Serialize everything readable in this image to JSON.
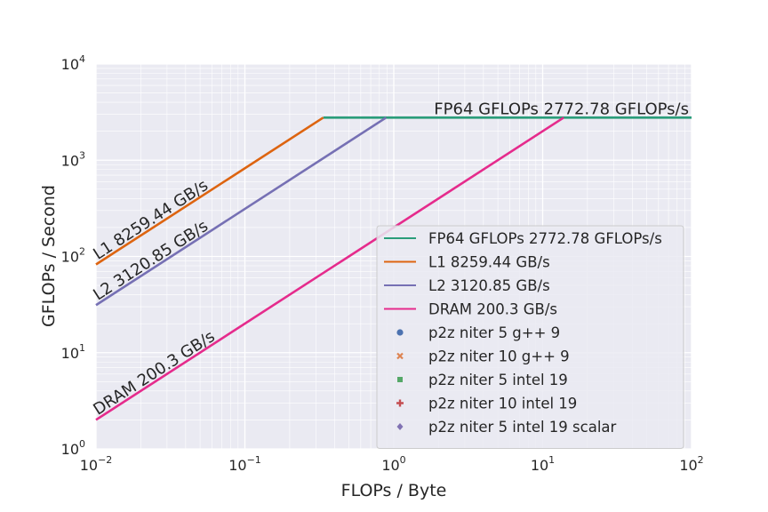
{
  "chart_data": {
    "type": "line",
    "xscale": "log",
    "yscale": "log",
    "xlim": [
      0.01,
      100
    ],
    "ylim": [
      1,
      10000
    ],
    "xlabel": "FLOPs / Byte",
    "ylabel": "GFLOPs / Second",
    "grid": true,
    "legend_position": "lower-right",
    "x_ticks": [
      {
        "value": 0.01,
        "base": "10",
        "exp": "−2"
      },
      {
        "value": 0.1,
        "base": "10",
        "exp": "−1"
      },
      {
        "value": 1,
        "base": "10",
        "exp": "0"
      },
      {
        "value": 10,
        "base": "10",
        "exp": "1"
      },
      {
        "value": 100,
        "base": "10",
        "exp": "2"
      }
    ],
    "y_ticks": [
      {
        "value": 1,
        "base": "10",
        "exp": "0"
      },
      {
        "value": 10,
        "base": "10",
        "exp": "1"
      },
      {
        "value": 100,
        "base": "10",
        "exp": "2"
      },
      {
        "value": 1000,
        "base": "10",
        "exp": "3"
      },
      {
        "value": 10000,
        "base": "10",
        "exp": "4"
      }
    ],
    "series": [
      {
        "name": "FP64 GFLOPs 2772.78 GFLOPs/s",
        "color": "#2a9d7a",
        "kind": "ceiling",
        "peak": 2772.78,
        "x": [
          0.336,
          100
        ],
        "y": [
          2772.78,
          2772.78
        ]
      },
      {
        "name": "L1 8259.44 GB/s",
        "color": "#dd6410",
        "kind": "bandwidth",
        "bw": 8259.44,
        "x": [
          0.01,
          0.336
        ],
        "y": [
          82.59,
          2772.78
        ]
      },
      {
        "name": "L2 3120.85 GB/s",
        "color": "#7670b4",
        "kind": "bandwidth",
        "bw": 3120.85,
        "x": [
          0.01,
          0.888
        ],
        "y": [
          31.21,
          2772.78
        ]
      },
      {
        "name": "DRAM 200.3 GB/s",
        "color": "#e52b8c",
        "kind": "bandwidth",
        "bw": 200.3,
        "x": [
          0.01,
          13.84
        ],
        "y": [
          2.003,
          2772.78
        ]
      }
    ],
    "line_labels": [
      {
        "text": "FP64 GFLOPs 2772.78 GFLOPs/s",
        "series": 0
      },
      {
        "text": "L1 8259.44 GB/s",
        "series": 1
      },
      {
        "text": "L2 3120.85 GB/s",
        "series": 2
      },
      {
        "text": "DRAM 200.3 GB/s",
        "series": 3
      }
    ],
    "markers": [
      {
        "name": "p2z niter 5  g++ 9",
        "color": "#4c72b0",
        "marker": "circle"
      },
      {
        "name": "p2z niter 10 g++ 9",
        "color": "#dd8452",
        "marker": "x"
      },
      {
        "name": "p2z niter 5  intel 19",
        "color": "#55a868",
        "marker": "square"
      },
      {
        "name": "p2z niter 10 intel 19",
        "color": "#c44e52",
        "marker": "plus"
      },
      {
        "name": "p2z niter 5  intel 19 scalar",
        "color": "#8172b3",
        "marker": "diamond"
      }
    ]
  }
}
